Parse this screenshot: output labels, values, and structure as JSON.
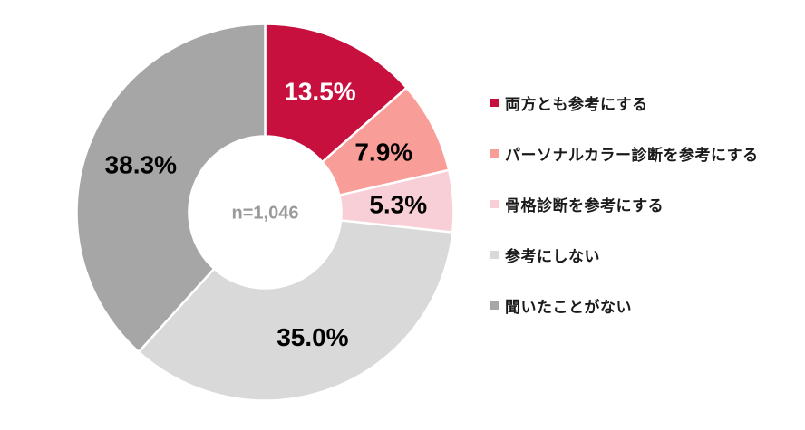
{
  "chart_data": {
    "type": "pie",
    "subtype": "donut",
    "title": "",
    "center_label": "n=1,046",
    "start_angle_deg": 0,
    "direction": "clockwise",
    "legend_position": "right",
    "categories": [
      "両方とも参考にする",
      "パーソナルカラー診断を参考にする",
      "骨格診断を参考にする",
      "参考にしない",
      "聞いたことがない"
    ],
    "values": [
      13.5,
      7.9,
      5.3,
      35.0,
      38.3
    ],
    "value_labels": [
      "13.5%",
      "7.9%",
      "5.3%",
      "35.0%",
      "38.3%"
    ],
    "colors": [
      "#C8103E",
      "#F99D99",
      "#F8CFD6",
      "#D9D9D9",
      "#A6A6A6"
    ],
    "label_colors": [
      "#FFFFFF",
      "#000000",
      "#000000",
      "#000000",
      "#000000"
    ],
    "slice_border_color": "#FFFFFF"
  }
}
